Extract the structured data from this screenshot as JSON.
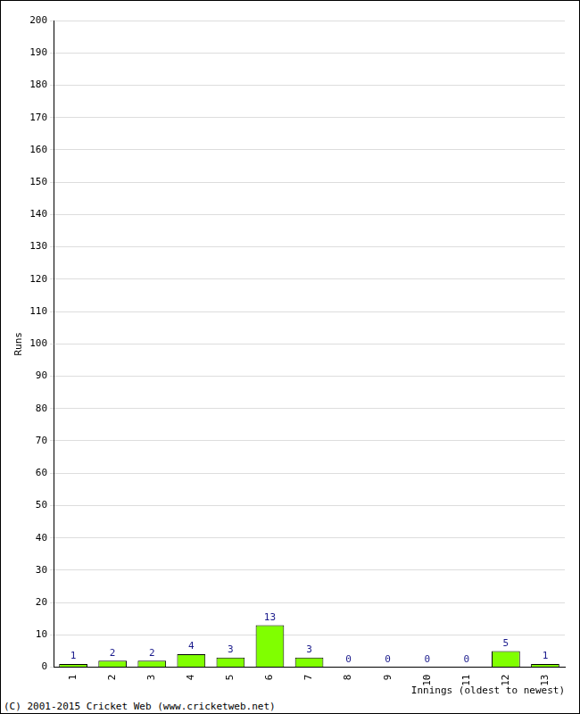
{
  "chart_data": {
    "type": "bar",
    "categories": [
      "1",
      "2",
      "3",
      "4",
      "5",
      "6",
      "7",
      "8",
      "9",
      "10",
      "11",
      "12",
      "13"
    ],
    "values": [
      1,
      2,
      2,
      4,
      3,
      13,
      3,
      0,
      0,
      0,
      0,
      5,
      1
    ],
    "color": "#80ff00",
    "y_label": "Runs",
    "x_label": "Innings (oldest to newest)",
    "annotation": "(C) 2001-2015 Cricket Web (www.cricketweb.net)",
    "ylim": [
      0,
      200
    ],
    "yticks": [
      0,
      10,
      20,
      30,
      40,
      50,
      60,
      70,
      80,
      90,
      100,
      110,
      120,
      130,
      140,
      150,
      160,
      170,
      180,
      190,
      200
    ],
    "grid": true,
    "data_labels": true
  }
}
